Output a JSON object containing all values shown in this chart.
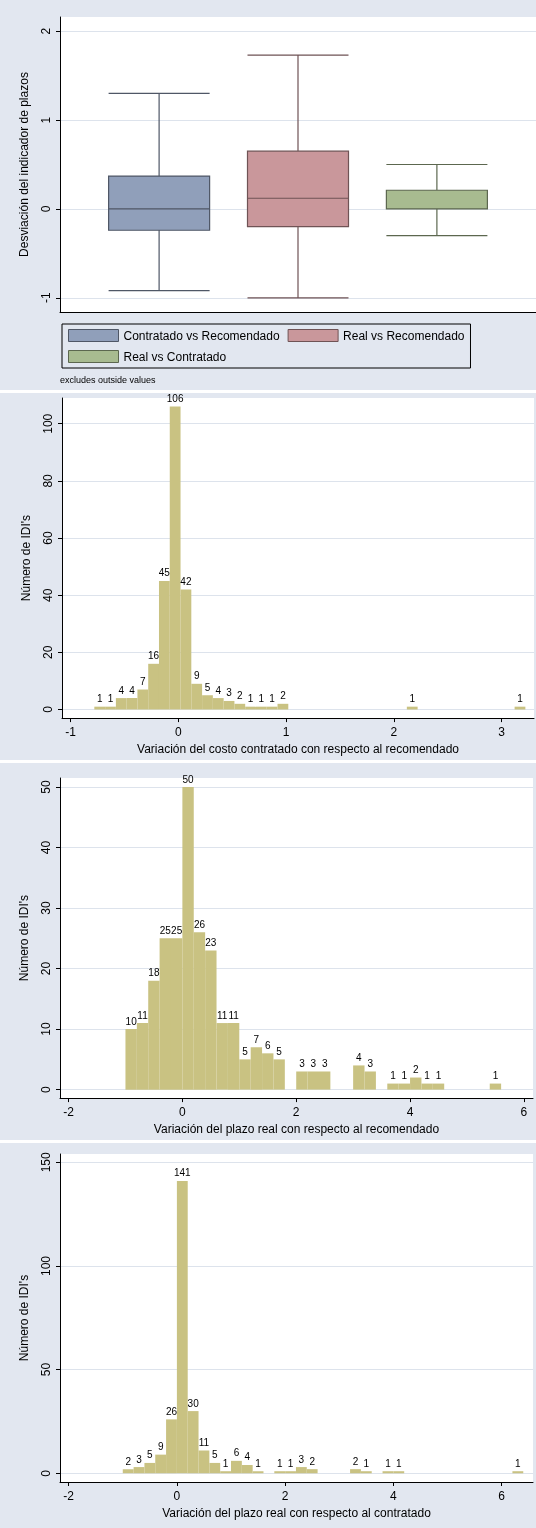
{
  "chart_data": [
    {
      "type": "box",
      "ylabel": "Desviación del indicador de plazos",
      "categories": [
        null
      ],
      "series": [
        {
          "name": "Contratado vs Recomendado",
          "color": "#909fba",
          "boxes": [
            {
              "low": -0.92,
              "q1": -0.24,
              "median": 0,
              "q3": 0.37,
              "high": 1.3
            }
          ]
        },
        {
          "name": "Real vs Recomendado",
          "color": "#c9979b",
          "boxes": [
            {
              "low": -1.0,
              "q1": -0.2,
              "median": 0.12,
              "q3": 0.65,
              "high": 1.73
            }
          ]
        },
        {
          "name": "Real vs Contratado",
          "color": "#a8bb90",
          "boxes": [
            {
              "low": -0.3,
              "q1": 0,
              "median": 0,
              "q3": 0.21,
              "high": 0.5
            }
          ]
        }
      ],
      "ylim": [
        -1.16,
        2.16
      ],
      "yticks": [
        -1,
        0,
        1,
        2
      ],
      "grid": "y",
      "legend": "bottom",
      "annotations": [
        "excludes outside values"
      ]
    },
    {
      "type": "histogram",
      "xlabel": "Variación del costo contratado con respecto al recomendado",
      "ylabel": "Número de IDI's",
      "color": "#c9c282",
      "bins": [
        -0.78,
        -0.68,
        -0.58,
        -0.48,
        -0.38,
        -0.28,
        -0.18,
        -0.08,
        0.02,
        0.12,
        0.22,
        0.32,
        0.42,
        0.52,
        0.62,
        0.72,
        0.82,
        0.92,
        1.02,
        1.12,
        1.22,
        1.32,
        1.42,
        1.52,
        1.62,
        1.72,
        1.82,
        1.92,
        2.02,
        2.12,
        2.22,
        2.32,
        2.42,
        2.52,
        2.62,
        2.72,
        2.82,
        2.92,
        3.02,
        3.12,
        3.22
      ],
      "values": [
        1,
        1,
        4,
        4,
        7,
        16,
        45,
        106,
        42,
        9,
        5,
        4,
        3,
        2,
        1,
        1,
        1,
        2,
        0,
        0,
        0,
        0,
        0,
        0,
        0,
        0,
        0,
        0,
        0,
        1,
        0,
        0,
        0,
        0,
        0,
        0,
        0,
        0,
        0,
        1
      ],
      "value_labels": [
        "1",
        "1",
        "4",
        "4",
        "7",
        "16",
        "45",
        "106",
        "42",
        "9",
        "5",
        "4",
        "3",
        "2",
        "1",
        "1",
        "1",
        "2",
        null,
        null,
        null,
        null,
        null,
        null,
        null,
        null,
        null,
        null,
        null,
        "1",
        null,
        null,
        null,
        null,
        null,
        null,
        null,
        null,
        null,
        "1"
      ],
      "xlim": [
        -1.08,
        3.3
      ],
      "xticks": [
        -1,
        0,
        1,
        2,
        3
      ],
      "ylim": [
        -3,
        109
      ],
      "yticks": [
        0,
        20,
        40,
        60,
        80,
        100
      ],
      "grid": "y"
    },
    {
      "type": "histogram",
      "xlabel": "Variación del plazo real con respecto al recomendado",
      "ylabel": "Número de IDI's",
      "color": "#c9c282",
      "bins": [
        -1.0,
        -0.8,
        -0.6,
        -0.4,
        -0.2,
        0.0,
        0.2,
        0.4,
        0.6,
        0.8,
        1.0,
        1.2,
        1.4,
        1.6,
        1.8,
        2.0,
        2.2,
        2.4,
        2.6,
        2.8,
        3.0,
        3.2,
        3.4,
        3.6,
        3.8,
        4.0,
        4.2,
        4.4,
        4.6,
        4.8,
        5.0,
        5.2,
        5.4,
        5.6
      ],
      "values": [
        10,
        11,
        18,
        25,
        25,
        50,
        26,
        23,
        11,
        11,
        5,
        7,
        6,
        5,
        0,
        3,
        3,
        3,
        0,
        0,
        4,
        3,
        0,
        1,
        1,
        2,
        1,
        1,
        0,
        0,
        0,
        0,
        1
      ],
      "value_labels": [
        "10",
        "11",
        "18",
        "25",
        "25",
        "50",
        "26",
        "23",
        "11",
        "11",
        "5",
        "7",
        "6",
        "5",
        null,
        "3",
        "3",
        "3",
        null,
        null,
        "4",
        "3",
        null,
        "1",
        "1",
        "2",
        "1",
        "1",
        null,
        null,
        null,
        null,
        "1"
      ],
      "xlim": [
        -2.15,
        6.16
      ],
      "xticks": [
        -2,
        0,
        2,
        4,
        6
      ],
      "ylim": [
        -1.4,
        51.5
      ],
      "yticks": [
        0,
        10,
        20,
        30,
        40,
        50
      ],
      "grid": "y"
    },
    {
      "type": "histogram",
      "xlabel": "Variación del plazo real con respecto al contratado",
      "ylabel": "Número de IDI's",
      "color": "#c9c282",
      "bins": [
        -1.0,
        -0.8,
        -0.6,
        -0.4,
        -0.2,
        0.0,
        0.2,
        0.4,
        0.6,
        0.8,
        1.0,
        1.2,
        1.4,
        1.6,
        1.8,
        2.0,
        2.2,
        2.4,
        2.6,
        2.8,
        3.0,
        3.2,
        3.4,
        3.6,
        3.8,
        4.0,
        4.2,
        4.4,
        4.6,
        4.8,
        5.0,
        5.2,
        5.4,
        5.6,
        5.8,
        6.0,
        6.2,
        6.4
      ],
      "values": [
        2,
        3,
        5,
        9,
        26,
        141,
        30,
        11,
        5,
        1,
        6,
        4,
        1,
        0,
        1,
        1,
        3,
        2,
        0,
        0,
        0,
        2,
        1,
        0,
        1,
        1,
        0,
        0,
        0,
        0,
        0,
        0,
        0,
        0,
        0,
        0,
        1
      ],
      "value_labels": [
        "2",
        "3",
        "5",
        "9",
        "26",
        "141",
        "30",
        "11",
        "5",
        "1",
        "6",
        "4",
        "1",
        null,
        "1",
        "1",
        "3",
        "2",
        null,
        null,
        null,
        "2",
        "1",
        null,
        "1",
        "1",
        null,
        null,
        null,
        null,
        null,
        null,
        null,
        null,
        null,
        null,
        "1"
      ],
      "xlim": [
        -2.16,
        6.58
      ],
      "xticks": [
        -2,
        0,
        2,
        4,
        6
      ],
      "ylim": [
        -4.2,
        154
      ],
      "yticks": [
        0,
        50,
        100,
        150
      ],
      "grid": "y"
    }
  ]
}
